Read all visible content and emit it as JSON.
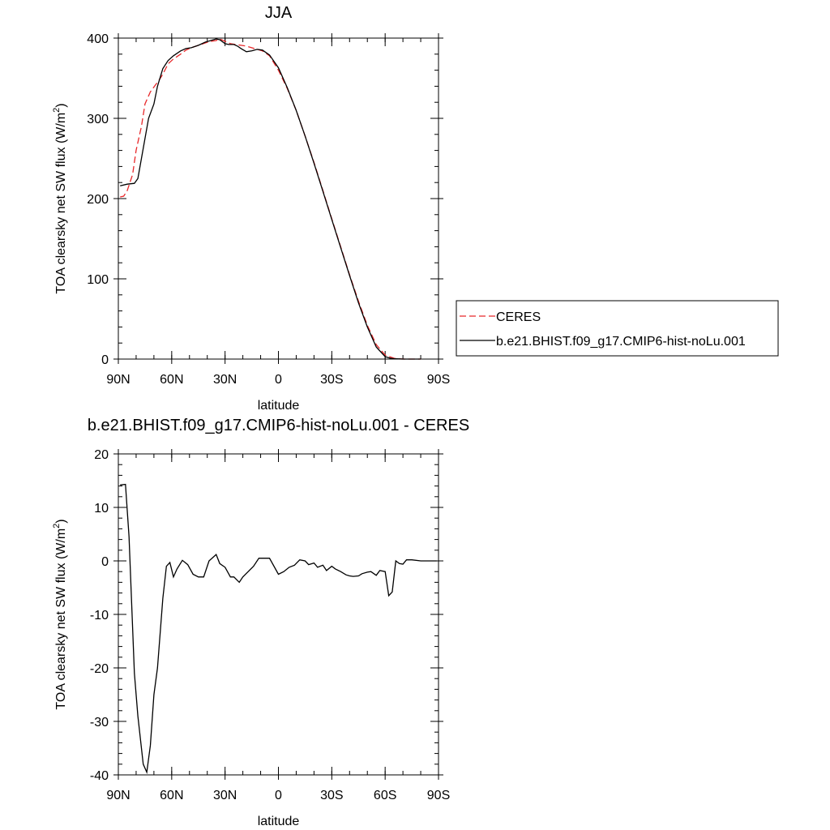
{
  "chart_data": [
    {
      "type": "line",
      "title": "JJA",
      "xlabel": "latitude",
      "ylabel": "TOA clearsky net SW flux (W/m",
      "ylabel_sup": "2",
      "ylabel_close": ")",
      "xlim": [
        90,
        -90
      ],
      "ylim": [
        0,
        400
      ],
      "xticks": [
        90,
        60,
        30,
        0,
        -30,
        -60,
        -90
      ],
      "xticklabels": [
        "90N",
        "60N",
        "30N",
        "0",
        "30S",
        "60S",
        "90S"
      ],
      "yticks": [
        0,
        100,
        200,
        300,
        400
      ],
      "yticklabels": [
        "0",
        "100",
        "200",
        "300",
        "400"
      ],
      "x_minor_step": 10,
      "y_minor_step": 20,
      "legend": "right",
      "series": [
        {
          "name": "CERES",
          "color": "#e8282a",
          "dash": "dashed",
          "x": [
            89,
            87,
            85,
            82,
            80,
            77,
            75,
            72,
            69,
            67,
            65,
            62,
            59,
            55,
            52,
            49,
            45,
            41,
            38,
            35,
            33,
            30,
            27,
            24,
            21,
            18,
            15,
            12,
            9,
            5,
            0,
            -5,
            -10,
            -15,
            -20,
            -25,
            -30,
            -35,
            -40,
            -45,
            -50,
            -55,
            -60,
            -65,
            -68,
            -70,
            -75,
            -80
          ],
          "y": [
            202,
            203,
            210,
            230,
            260,
            290,
            318,
            333,
            342,
            348,
            355,
            368,
            374,
            380,
            385,
            388,
            391,
            394,
            396,
            397,
            399,
            396,
            393,
            392,
            391,
            390,
            388,
            386,
            384,
            378,
            360,
            337,
            310,
            278,
            245,
            210,
            175,
            140,
            105,
            72,
            42,
            18,
            5,
            1,
            0.3,
            0,
            0,
            0
          ]
        },
        {
          "name": "b.e21.BHIST.f09_g17.CMIP6-hist-noLu.001",
          "color": "#000000",
          "dash": "solid",
          "x": [
            89,
            85,
            81,
            79,
            77,
            75,
            73,
            70,
            68,
            65,
            62,
            59,
            55,
            52,
            49,
            45,
            41,
            38,
            35,
            33,
            30,
            28,
            25,
            23,
            21,
            18,
            15,
            12,
            9,
            5,
            0,
            -5,
            -10,
            -15,
            -20,
            -25,
            -30,
            -35,
            -40,
            -45,
            -50,
            -55,
            -60,
            -63,
            -65,
            -68,
            -70,
            -75,
            -80
          ],
          "y": [
            216,
            218,
            219,
            225,
            250,
            275,
            300,
            318,
            340,
            362,
            372,
            378,
            384,
            387,
            388,
            391,
            395,
            397,
            399,
            398,
            393,
            392,
            392,
            390,
            387,
            383,
            384,
            386,
            385,
            379,
            363,
            338,
            310,
            278,
            244,
            209,
            174,
            139,
            104,
            70,
            40,
            15,
            3,
            1,
            0.5,
            0.2,
            0,
            0,
            0
          ]
        }
      ]
    },
    {
      "type": "line",
      "title": "b.e21.BHIST.f09_g17.CMIP6-hist-noLu.001 - CERES",
      "xlabel": "latitude",
      "ylabel": "TOA clearsky net SW flux (W/m",
      "ylabel_sup": "2",
      "ylabel_close": ")",
      "xlim": [
        90,
        -90
      ],
      "ylim": [
        -40,
        20
      ],
      "xticks": [
        90,
        60,
        30,
        0,
        -30,
        -60,
        -90
      ],
      "xticklabels": [
        "90N",
        "60N",
        "30N",
        "0",
        "30S",
        "60S",
        "90S"
      ],
      "yticks": [
        -40,
        -30,
        -20,
        -10,
        0,
        10,
        20
      ],
      "yticklabels": [
        "-40",
        "-30",
        "-20",
        "-10",
        "0",
        "10",
        "20"
      ],
      "x_minor_step": 10,
      "y_minor_step": 2,
      "series": [
        {
          "name": "",
          "color": "#000000",
          "dash": "solid",
          "x": [
            89,
            86,
            84,
            81,
            79,
            76,
            74,
            72,
            70,
            68,
            65,
            63,
            61,
            59,
            57,
            54,
            51,
            48,
            45,
            42,
            39,
            35,
            33,
            30,
            27,
            25,
            22,
            20,
            17,
            14,
            11,
            8,
            5,
            0,
            -3,
            -6,
            -9,
            -12,
            -15,
            -17,
            -20,
            -22,
            -25,
            -27,
            -30,
            -32,
            -35,
            -38,
            -40,
            -42,
            -45,
            -47,
            -50,
            -52,
            -55,
            -57,
            -60,
            -62,
            -64,
            -66,
            -68,
            -70,
            -72,
            -75,
            -80,
            -85,
            -89
          ],
          "y": [
            14.2,
            14.3,
            4.5,
            -21,
            -29,
            -38,
            -39.5,
            -34.5,
            -25,
            -20,
            -7,
            -1,
            -0.3,
            -3,
            -1.5,
            0.1,
            -0.7,
            -2.5,
            -3,
            -3,
            0,
            1.2,
            -0.5,
            -1.2,
            -3,
            -3,
            -4,
            -3,
            -2,
            -1,
            0.5,
            0.5,
            0.5,
            -2.5,
            -2,
            -1.2,
            -0.8,
            0.2,
            0,
            -0.7,
            -0.4,
            -1.2,
            -0.8,
            -1.8,
            -1,
            -1.5,
            -2,
            -2.6,
            -2.8,
            -2.9,
            -2.8,
            -2.4,
            -2.1,
            -2,
            -2.7,
            -1.8,
            -2,
            -6.5,
            -5.8,
            0,
            -0.5,
            -0.6,
            0.2,
            0.2,
            0,
            0,
            0
          ]
        }
      ]
    }
  ]
}
